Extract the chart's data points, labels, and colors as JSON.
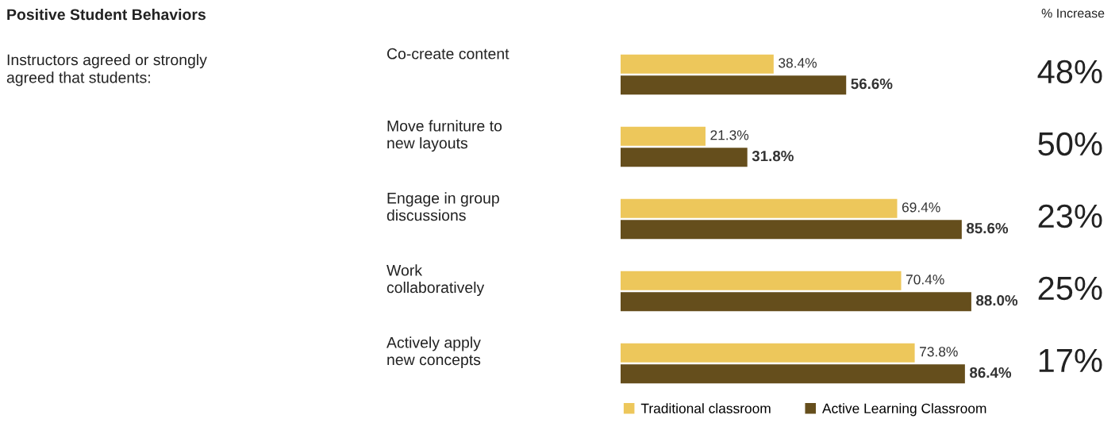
{
  "chart_data": {
    "type": "bar",
    "orientation": "horizontal",
    "title": "Positive Student Behaviors",
    "subtitle": "Instructors agreed or strongly\nagreed that students:",
    "categories": [
      "Co-create content",
      "Move furniture to\nnew layouts",
      "Engage in group\ndiscussions",
      "Work\ncollaboratively",
      "Actively apply\nnew concepts"
    ],
    "series": [
      {
        "name": "Traditional classroom",
        "color": "#edc75b",
        "values": [
          38.4,
          21.3,
          69.4,
          70.4,
          73.8
        ],
        "value_labels": [
          "38.4%",
          "21.3%",
          "69.4%",
          "70.4%",
          "73.8%"
        ]
      },
      {
        "name": "Active Learning Classroom",
        "color": "#654e1c",
        "values": [
          56.6,
          31.8,
          85.6,
          88.0,
          86.4
        ],
        "value_labels": [
          "56.6%",
          "31.8%",
          "85.6%",
          "88.0%",
          "86.4%"
        ]
      }
    ],
    "legend": "bottom",
    "annotations": [
      "% Increase",
      "48%",
      "50%",
      "23%",
      "25%",
      "17%"
    ]
  }
}
